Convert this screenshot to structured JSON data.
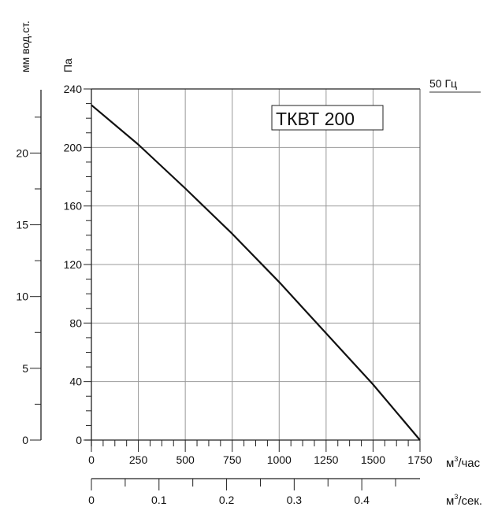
{
  "chart_data": {
    "type": "line",
    "title": "ТКВТ 200",
    "frequency_label": "50 Гц",
    "xlabel": "м³/час",
    "xlabel_base": "м",
    "xlabel_sup": "3",
    "xlabel_rest": "/час",
    "x2label_base": "м",
    "x2label_sup": "3",
    "x2label_rest": "/сек.",
    "ylabel": "Па",
    "y2label": "мм вод.ст.",
    "xlim": [
      0,
      1750
    ],
    "ylim": [
      0,
      240
    ],
    "x_ticks": [
      0,
      250,
      500,
      750,
      1000,
      1250,
      1500,
      1750
    ],
    "y_ticks": [
      0,
      40,
      80,
      120,
      160,
      200,
      240
    ],
    "y2_ticks": [
      0,
      5,
      10,
      15,
      20
    ],
    "x2_ticks": [
      0,
      0.1,
      0.2,
      0.3,
      0.4
    ],
    "grid": true,
    "series": [
      {
        "name": "ТКВТ 200",
        "color": "#111111",
        "x": [
          0,
          250,
          500,
          750,
          1000,
          1250,
          1500,
          1750
        ],
        "y": [
          229,
          202,
          172,
          141,
          108,
          73,
          38,
          0
        ]
      }
    ]
  }
}
